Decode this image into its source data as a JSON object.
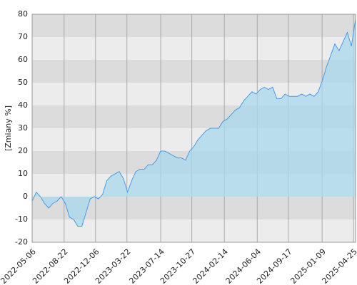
{
  "chart_data": {
    "type": "line",
    "y_label": "[Zmiany %]",
    "x": [
      "2022-05-06",
      "2022-05-20",
      "2022-06-03",
      "2022-06-17",
      "2022-07-01",
      "2022-07-15",
      "2022-07-29",
      "2022-08-12",
      "2022-08-26",
      "2022-09-09",
      "2022-09-23",
      "2022-10-07",
      "2022-10-21",
      "2022-11-04",
      "2022-11-18",
      "2022-12-02",
      "2022-12-16",
      "2022-12-30",
      "2023-01-13",
      "2023-01-27",
      "2023-02-10",
      "2023-02-24",
      "2023-03-10",
      "2023-03-24",
      "2023-04-07",
      "2023-04-21",
      "2023-05-05",
      "2023-05-19",
      "2023-06-02",
      "2023-06-16",
      "2023-06-30",
      "2023-07-14",
      "2023-07-28",
      "2023-08-11",
      "2023-08-25",
      "2023-09-08",
      "2023-09-22",
      "2023-10-06",
      "2023-10-20",
      "2023-11-03",
      "2023-11-17",
      "2023-12-01",
      "2023-12-15",
      "2023-12-29",
      "2024-01-12",
      "2024-01-26",
      "2024-02-09",
      "2024-02-23",
      "2024-03-08",
      "2024-03-22",
      "2024-04-05",
      "2024-04-19",
      "2024-05-03",
      "2024-05-17",
      "2024-05-31",
      "2024-06-14",
      "2024-06-28",
      "2024-07-12",
      "2024-07-26",
      "2024-08-09",
      "2024-08-23",
      "2024-09-06",
      "2024-09-20",
      "2024-10-04",
      "2024-10-18",
      "2024-11-01",
      "2024-11-15",
      "2024-11-29",
      "2024-12-13",
      "2024-12-27",
      "2025-01-10",
      "2025-01-24",
      "2025-02-07",
      "2025-02-21",
      "2025-03-07",
      "2025-03-21",
      "2025-04-04",
      "2025-04-18",
      "2025-05-02"
    ],
    "series": [
      {
        "color": "#4a9be6",
        "fill": "#a8d8ec",
        "values": [
          -2,
          2,
          0,
          -3,
          -5,
          -3,
          -2,
          0,
          -3,
          -9,
          -10,
          -13,
          -13,
          -7,
          -1,
          0,
          -1,
          1,
          7,
          9,
          10,
          11,
          8,
          2,
          7,
          11,
          12,
          12,
          14,
          14,
          16,
          20,
          20,
          19,
          18,
          17,
          17,
          16,
          20,
          22,
          25,
          27,
          29,
          30,
          30,
          30,
          33,
          34,
          36,
          38,
          39,
          42,
          44,
          46,
          45,
          47,
          48,
          47,
          48,
          43,
          43,
          45,
          44,
          44,
          44,
          45,
          44,
          45,
          44,
          46,
          51,
          57,
          62,
          67,
          64,
          68,
          72,
          66,
          78
        ]
      }
    ],
    "xlim": [
      "2022-05-06",
      "2025-05-02"
    ],
    "xticks": [
      "2022-05-06",
      "2022-08-22",
      "2022-12-06",
      "2023-03-22",
      "2023-07-14",
      "2023-10-27",
      "2024-02-14",
      "2024-06-04",
      "2024-09-17",
      "2025-01-09",
      "2025-04-25"
    ],
    "ylim": [
      -20,
      80
    ],
    "yticks": [
      -20,
      -10,
      0,
      10,
      20,
      30,
      40,
      50,
      60,
      70,
      80
    ],
    "grid": true
  }
}
